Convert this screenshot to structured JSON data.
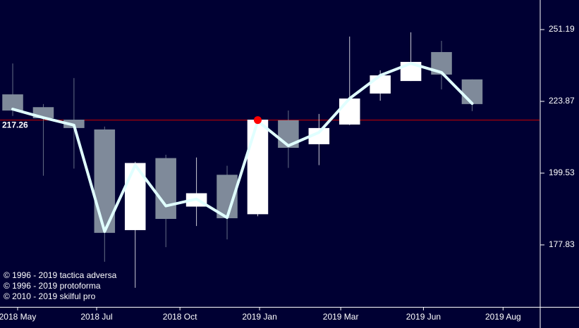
{
  "chart_data": {
    "type": "candlestick",
    "x": [
      0,
      1,
      2,
      3,
      4,
      5,
      6,
      7,
      8,
      9,
      10,
      11,
      12,
      13,
      14,
      15
    ],
    "open": [
      226.4,
      221.8,
      217.4,
      214.0,
      182.1,
      204.4,
      189.1,
      199.0,
      186.8,
      217.2,
      209.0,
      215.7,
      226.7,
      231.3,
      242.3,
      231.9
    ],
    "high": [
      237.9,
      222.9,
      232.4,
      215.0,
      203.2,
      205.5,
      204.6,
      201.9,
      217.9,
      220.6,
      219.4,
      248.4,
      235.3,
      250.1,
      246.7,
      231.9
    ],
    "low": [
      218.7,
      198.7,
      201.0,
      173.1,
      166.0,
      177.2,
      183.3,
      179.4,
      186.2,
      201.2,
      202.1,
      215.5,
      224.1,
      231.3,
      228.2,
      220.4
    ],
    "close": [
      220.6,
      217.9,
      214.5,
      181.3,
      202.8,
      185.4,
      193.2,
      185.6,
      217.4,
      207.8,
      214.5,
      224.9,
      233.4,
      238.5,
      233.7,
      222.9
    ],
    "up_color": "#ffffff",
    "down_color": "#7f8a9a",
    "line": {
      "color": "#e0ffff",
      "values": [
        221.1,
        218.1,
        215.5,
        181.7,
        202.1,
        189.3,
        191.4,
        185.8,
        216.9,
        208.5,
        213.0,
        224.9,
        233.4,
        237.9,
        234.5,
        223.1
      ]
    },
    "level": {
      "value": 217.26,
      "color": "#cc0000",
      "marker_x": 8,
      "marker_color": "#ff0000"
    },
    "xlim": [
      -0.415,
      17.2
    ],
    "xticks": [
      {
        "value": 0.16,
        "label": "2018 May"
      },
      {
        "value": 2.74,
        "label": "2018 Jul"
      },
      {
        "value": 5.46,
        "label": "2018 Oct"
      },
      {
        "value": 8.06,
        "label": "2019 Jan"
      },
      {
        "value": 10.71,
        "label": "2019 Mar"
      },
      {
        "value": 13.41,
        "label": "2019 Jun"
      },
      {
        "value": 16.01,
        "label": "2019 Aug"
      }
    ],
    "ylim": [
      161.0,
      263.4
    ],
    "yticks": [
      177.83,
      199.53,
      223.87,
      251.19
    ],
    "log_scale": true,
    "copyright": [
      "© 1996 - 2019 tactica adversa",
      "© 1996 - 2019 protoforma",
      "© 2010 - 2019 skilful pro"
    ]
  }
}
